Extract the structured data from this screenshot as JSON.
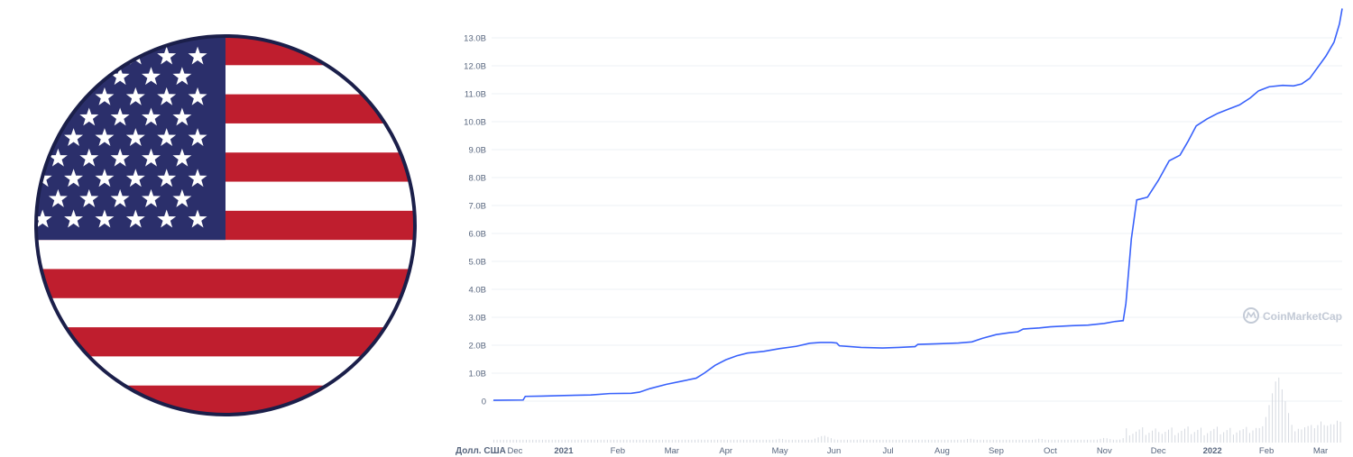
{
  "flag": {
    "name": "United States flag",
    "stripe_red": "#bf1e2e",
    "stripe_white": "#ffffff",
    "canton_blue": "#2b2f6b",
    "border": "#1b1f4a"
  },
  "watermark": {
    "text": "CoinMarketCap",
    "icon": "coinmarketcap-logo-icon"
  },
  "colors": {
    "line": "#3861fb",
    "grid": "#eef0f4",
    "tick_label": "#58667e",
    "watermark": "#c3cad6",
    "volume_bar": "#d5d9e0"
  },
  "chart_data": {
    "type": "line",
    "title": "",
    "ylabel": "",
    "xlabel": "Долл. США",
    "ylim": [
      0,
      14
    ],
    "y_ticks": [
      {
        "value": 0,
        "label": "0"
      },
      {
        "value": 1,
        "label": "1.0B"
      },
      {
        "value": 2,
        "label": "2.0B"
      },
      {
        "value": 3,
        "label": "3.0B"
      },
      {
        "value": 4,
        "label": "4.0B"
      },
      {
        "value": 5,
        "label": "5.0B"
      },
      {
        "value": 6,
        "label": "6.0B"
      },
      {
        "value": 7,
        "label": "7.0B"
      },
      {
        "value": 8,
        "label": "8.0B"
      },
      {
        "value": 9,
        "label": "9.0B"
      },
      {
        "value": 10,
        "label": "10.0B"
      },
      {
        "value": 11,
        "label": "11.0B"
      },
      {
        "value": 12,
        "label": "12.0B"
      },
      {
        "value": 13,
        "label": "13.0B"
      }
    ],
    "x_range": [
      0,
      15.4
    ],
    "x_ticks": [
      {
        "value": 0.1,
        "label": "Dec",
        "bold": false
      },
      {
        "value": 1.0,
        "label": "2021",
        "bold": true
      },
      {
        "value": 2.0,
        "label": "Feb",
        "bold": false
      },
      {
        "value": 3.0,
        "label": "Mar",
        "bold": false
      },
      {
        "value": 4.0,
        "label": "Apr",
        "bold": false
      },
      {
        "value": 5.0,
        "label": "May",
        "bold": false
      },
      {
        "value": 6.0,
        "label": "Jun",
        "bold": false
      },
      {
        "value": 7.0,
        "label": "Jul",
        "bold": false
      },
      {
        "value": 8.0,
        "label": "Aug",
        "bold": false
      },
      {
        "value": 9.0,
        "label": "Sep",
        "bold": false
      },
      {
        "value": 10.0,
        "label": "Oct",
        "bold": false
      },
      {
        "value": 11.0,
        "label": "Nov",
        "bold": false
      },
      {
        "value": 12.0,
        "label": "Dec",
        "bold": false
      },
      {
        "value": 13.0,
        "label": "2022",
        "bold": true
      },
      {
        "value": 14.0,
        "label": "Feb",
        "bold": false
      },
      {
        "value": 15.0,
        "label": "Mar",
        "bold": false
      }
    ],
    "series": [
      {
        "points": [
          [
            -0.3,
            0.03
          ],
          [
            0.25,
            0.04
          ],
          [
            0.29,
            0.17
          ],
          [
            0.6,
            0.18
          ],
          [
            1.0,
            0.2
          ],
          [
            1.5,
            0.22
          ],
          [
            1.85,
            0.27
          ],
          [
            2.25,
            0.28
          ],
          [
            2.4,
            0.32
          ],
          [
            2.6,
            0.45
          ],
          [
            2.9,
            0.6
          ],
          [
            3.2,
            0.72
          ],
          [
            3.45,
            0.82
          ],
          [
            3.6,
            1.0
          ],
          [
            3.8,
            1.28
          ],
          [
            4.0,
            1.48
          ],
          [
            4.2,
            1.62
          ],
          [
            4.4,
            1.72
          ],
          [
            4.7,
            1.78
          ],
          [
            5.0,
            1.88
          ],
          [
            5.3,
            1.96
          ],
          [
            5.55,
            2.07
          ],
          [
            5.75,
            2.1
          ],
          [
            5.95,
            2.1
          ],
          [
            6.05,
            2.08
          ],
          [
            6.1,
            1.98
          ],
          [
            6.5,
            1.92
          ],
          [
            6.9,
            1.9
          ],
          [
            7.2,
            1.92
          ],
          [
            7.5,
            1.95
          ],
          [
            7.55,
            2.03
          ],
          [
            7.9,
            2.05
          ],
          [
            8.3,
            2.08
          ],
          [
            8.55,
            2.12
          ],
          [
            8.75,
            2.25
          ],
          [
            9.0,
            2.38
          ],
          [
            9.25,
            2.45
          ],
          [
            9.4,
            2.48
          ],
          [
            9.5,
            2.58
          ],
          [
            9.8,
            2.62
          ],
          [
            10.0,
            2.66
          ],
          [
            10.4,
            2.7
          ],
          [
            10.7,
            2.72
          ],
          [
            11.0,
            2.78
          ],
          [
            11.2,
            2.85
          ],
          [
            11.35,
            2.88
          ],
          [
            11.4,
            3.5
          ],
          [
            11.5,
            5.8
          ],
          [
            11.6,
            7.2
          ],
          [
            11.8,
            7.3
          ],
          [
            12.0,
            7.9
          ],
          [
            12.2,
            8.6
          ],
          [
            12.4,
            8.8
          ],
          [
            12.55,
            9.3
          ],
          [
            12.7,
            9.85
          ],
          [
            12.9,
            10.1
          ],
          [
            13.1,
            10.3
          ],
          [
            13.3,
            10.45
          ],
          [
            13.5,
            10.6
          ],
          [
            13.7,
            10.85
          ],
          [
            13.85,
            11.1
          ],
          [
            14.05,
            11.25
          ],
          [
            14.3,
            11.3
          ],
          [
            14.5,
            11.28
          ],
          [
            14.65,
            11.35
          ],
          [
            14.8,
            11.55
          ],
          [
            14.95,
            11.95
          ],
          [
            15.1,
            12.35
          ],
          [
            15.25,
            12.85
          ],
          [
            15.35,
            13.5
          ],
          [
            15.4,
            14.05
          ]
        ]
      }
    ],
    "volume": [
      [
        0.5,
        0.3
      ],
      [
        2.0,
        0.3
      ],
      [
        3.5,
        0.4
      ],
      [
        5.0,
        0.5
      ],
      [
        5.8,
        0.9
      ],
      [
        6.5,
        0.4
      ],
      [
        8.5,
        0.5
      ],
      [
        9.8,
        0.5
      ],
      [
        11.0,
        0.6
      ],
      [
        11.5,
        1.0
      ],
      [
        12.0,
        1.3
      ],
      [
        12.5,
        1.3
      ],
      [
        13.0,
        1.4
      ],
      [
        13.5,
        1.5
      ],
      [
        13.8,
        1.8
      ],
      [
        14.0,
        2.6
      ],
      [
        14.1,
        3.0
      ],
      [
        14.2,
        8.5
      ],
      [
        14.35,
        2.0
      ],
      [
        14.6,
        1.8
      ],
      [
        14.8,
        2.3
      ],
      [
        15.0,
        2.6
      ],
      [
        15.1,
        2.2
      ],
      [
        15.2,
        2.4
      ],
      [
        15.3,
        2.7
      ],
      [
        15.4,
        2.9
      ]
    ],
    "grid": true,
    "legend": "none"
  }
}
